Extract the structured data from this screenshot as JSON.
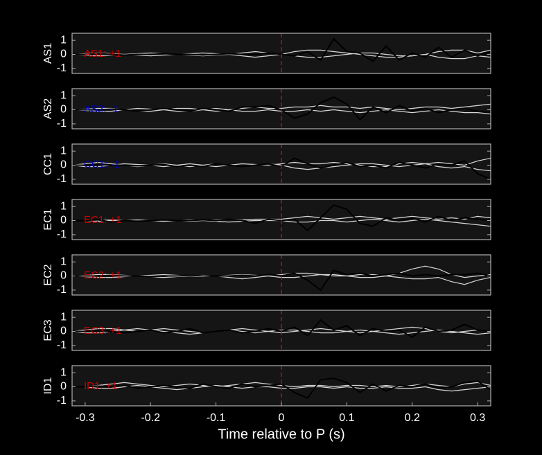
{
  "chart_data": [
    {
      "type": "line",
      "ylabel": "AS1",
      "annotation": {
        "text": "AS1: +1",
        "color": "#cc0000"
      },
      "vline": {
        "value": 0,
        "color": "#dd0000"
      },
      "x": [
        -0.32,
        -0.3,
        -0.28,
        -0.26,
        -0.24,
        -0.22,
        -0.2,
        -0.18,
        -0.16,
        -0.14,
        -0.12,
        -0.1,
        -0.08,
        -0.06,
        -0.04,
        -0.02,
        0,
        0.02,
        0.04,
        0.06,
        0.08,
        0.1,
        0.12,
        0.14,
        0.16,
        0.18,
        0.2,
        0.22,
        0.24,
        0.26,
        0.28,
        0.3,
        0.32
      ],
      "xlim": [
        -0.32,
        0.32
      ],
      "ylim": [
        -1.35,
        1.5
      ],
      "yticks": [
        -1,
        0,
        1
      ],
      "series": [
        {
          "color": "#d8d8d8",
          "values": [
            0,
            0.05,
            0.1,
            0.05,
            0,
            -0.05,
            -0.1,
            -0.05,
            0,
            0.05,
            0.1,
            0.05,
            0,
            -0.1,
            -0.2,
            -0.1,
            0,
            0.2,
            0.3,
            0.3,
            0.2,
            0.1,
            0,
            -0.1,
            -0.2,
            -0.2,
            -0.1,
            0,
            0.2,
            0.3,
            0.3,
            0.1,
            0.3
          ]
        },
        {
          "color": "#d8d8d8",
          "values": [
            0,
            -0.05,
            -0.1,
            -0.05,
            0,
            0.05,
            0.1,
            0.05,
            0,
            -0.05,
            -0.1,
            -0.05,
            0,
            0.1,
            0.2,
            0.1,
            0,
            -0.1,
            -0.2,
            -0.2,
            -0.1,
            0,
            0.1,
            0.1,
            0,
            -0.1,
            -0.1,
            0,
            -0.2,
            -0.3,
            -0.3,
            -0.1,
            -0.2
          ]
        },
        {
          "color": "#000000",
          "values": [
            0,
            0,
            0.05,
            0,
            -0.05,
            0,
            0,
            0.05,
            0,
            0,
            -0.05,
            0,
            0.05,
            0,
            0,
            0.1,
            0,
            -0.1,
            0.2,
            -0.4,
            1.1,
            0.2,
            0.1,
            -0.5,
            0.6,
            -0.4,
            0.1,
            -0.2,
            0.5,
            -0.2,
            0.3,
            -0.1,
            0.2
          ]
        }
      ]
    },
    {
      "type": "line",
      "ylabel": "AS2",
      "annotation": {
        "text": "AS2: -1",
        "color": "#0000bb"
      },
      "vline": {
        "value": 0,
        "color": "#dd0000"
      },
      "x": [
        -0.32,
        -0.3,
        -0.28,
        -0.26,
        -0.24,
        -0.22,
        -0.2,
        -0.18,
        -0.16,
        -0.14,
        -0.12,
        -0.1,
        -0.08,
        -0.06,
        -0.04,
        -0.02,
        0,
        0.02,
        0.04,
        0.06,
        0.08,
        0.1,
        0.12,
        0.14,
        0.16,
        0.18,
        0.2,
        0.22,
        0.24,
        0.26,
        0.28,
        0.3,
        0.32
      ],
      "xlim": [
        -0.32,
        0.32
      ],
      "ylim": [
        -1.35,
        1.5
      ],
      "yticks": [
        -1,
        0,
        1
      ],
      "series": [
        {
          "color": "#d8d8d8",
          "values": [
            0,
            0.05,
            0.1,
            0.1,
            0,
            -0.1,
            -0.1,
            0,
            0.1,
            0.1,
            0,
            -0.1,
            0,
            0.1,
            0.2,
            0.1,
            0.1,
            0.2,
            0.2,
            0.3,
            0.2,
            0.2,
            0.1,
            0.2,
            0.1,
            0,
            0.1,
            0.2,
            0.2,
            0.1,
            0.2,
            0.3,
            0.4
          ]
        },
        {
          "color": "#d8d8d8",
          "values": [
            0,
            -0.05,
            -0.1,
            -0.1,
            0,
            0.1,
            0.05,
            0,
            -0.1,
            -0.1,
            0,
            0.1,
            0,
            -0.1,
            -0.1,
            0,
            -0.1,
            -0.1,
            0,
            -0.1,
            0,
            -0.1,
            -0.2,
            -0.1,
            0,
            -0.1,
            -0.2,
            -0.1,
            0,
            -0.1,
            -0.2,
            -0.2,
            -0.3
          ]
        },
        {
          "color": "#000000",
          "values": [
            0,
            0,
            0,
            0.05,
            0,
            -0.1,
            0,
            0.1,
            0,
            -0.1,
            0.1,
            0,
            -0.1,
            0.2,
            0.2,
            0.3,
            0,
            -0.6,
            -0.3,
            0.5,
            0.9,
            0.4,
            -0.7,
            0.2,
            -0.2,
            0.3,
            -0.1,
            0.1,
            -0.2,
            0,
            0.1,
            -0.1,
            -0.2
          ]
        }
      ]
    },
    {
      "type": "line",
      "ylabel": "CC1",
      "annotation": {
        "text": "CC1: -1",
        "color": "#0000bb"
      },
      "vline": {
        "value": 0,
        "color": "#dd0000"
      },
      "x": [
        -0.32,
        -0.3,
        -0.28,
        -0.26,
        -0.24,
        -0.22,
        -0.2,
        -0.18,
        -0.16,
        -0.14,
        -0.12,
        -0.1,
        -0.08,
        -0.06,
        -0.04,
        -0.02,
        0,
        0.02,
        0.04,
        0.06,
        0.08,
        0.1,
        0.12,
        0.14,
        0.16,
        0.18,
        0.2,
        0.22,
        0.24,
        0.26,
        0.28,
        0.3,
        0.32
      ],
      "xlim": [
        -0.32,
        0.32
      ],
      "ylim": [
        -1.35,
        1.5
      ],
      "yticks": [
        -1,
        0,
        1
      ],
      "series": [
        {
          "color": "#d8d8d8",
          "values": [
            0,
            0.1,
            0.2,
            0.1,
            0,
            -0.1,
            0,
            0.1,
            0,
            -0.1,
            0,
            0.1,
            0,
            -0.1,
            0,
            0.1,
            0,
            -0.2,
            -0.3,
            -0.2,
            -0.1,
            0,
            0.1,
            0.1,
            0,
            -0.1,
            0,
            0.1,
            0.2,
            0.1,
            0,
            0.3,
            0.5
          ]
        },
        {
          "color": "#d8d8d8",
          "values": [
            0,
            -0.1,
            -0.1,
            0,
            0.1,
            0.05,
            0,
            -0.1,
            0,
            0.1,
            0,
            -0.1,
            0,
            0.1,
            0.05,
            0,
            0.1,
            0.2,
            0.1,
            0.1,
            0.2,
            0.1,
            0,
            -0.1,
            -0.1,
            0.1,
            0.2,
            0.1,
            -0.1,
            -0.2,
            -0.1,
            -0.3,
            -0.4
          ]
        },
        {
          "color": "#000000",
          "values": [
            0,
            0,
            0.05,
            0,
            0,
            -0.05,
            0,
            0.05,
            -0.1,
            0,
            -0.1,
            0.1,
            0,
            -0.1,
            0,
            0.1,
            -0.1,
            0.5,
            0.1,
            -0.2,
            0,
            0.2,
            -0.1,
            0,
            -0.2,
            0.2,
            0,
            -0.2,
            0.1,
            0,
            0.3,
            -0.6,
            -1.0
          ]
        }
      ]
    },
    {
      "type": "line",
      "ylabel": "EC1",
      "annotation": {
        "text": "EC1: +1",
        "color": "#cc0000"
      },
      "vline": {
        "value": 0,
        "color": "#dd0000"
      },
      "x": [
        -0.32,
        -0.3,
        -0.28,
        -0.26,
        -0.24,
        -0.22,
        -0.2,
        -0.18,
        -0.16,
        -0.14,
        -0.12,
        -0.1,
        -0.08,
        -0.06,
        -0.04,
        -0.02,
        0,
        0.02,
        0.04,
        0.06,
        0.08,
        0.1,
        0.12,
        0.14,
        0.16,
        0.18,
        0.2,
        0.22,
        0.24,
        0.26,
        0.28,
        0.3,
        0.32
      ],
      "xlim": [
        -0.32,
        0.32
      ],
      "ylim": [
        -1.35,
        1.5
      ],
      "yticks": [
        -1,
        0,
        1
      ],
      "series": [
        {
          "color": "#d8d8d8",
          "values": [
            0,
            0,
            0,
            0.05,
            0,
            -0.05,
            0,
            0.05,
            0,
            -0.05,
            0,
            0.05,
            0.1,
            0.05,
            0.1,
            0.1,
            0.1,
            0.2,
            0.3,
            0.2,
            0.1,
            0.2,
            0.3,
            0.2,
            0.1,
            0.2,
            0.3,
            0.2,
            0.1,
            0.2,
            0.1,
            0.3,
            0.2
          ]
        },
        {
          "color": "#d8d8d8",
          "values": [
            0,
            0,
            -0.05,
            0,
            0,
            0.05,
            0,
            -0.05,
            0,
            0.05,
            0,
            -0.05,
            -0.1,
            -0.05,
            0,
            0,
            0,
            -0.1,
            -0.1,
            0,
            0,
            -0.1,
            0,
            0.1,
            0,
            -0.1,
            0,
            0.1,
            0,
            -0.1,
            -0.2,
            -0.3,
            -0.4
          ]
        },
        {
          "color": "#000000",
          "values": [
            0,
            0,
            0.05,
            -0.1,
            0,
            -0.05,
            0,
            0.05,
            0,
            0,
            0.05,
            0,
            0.1,
            0,
            -0.2,
            0.1,
            0,
            0.1,
            -0.7,
            0.2,
            1.1,
            0.8,
            -0.2,
            -0.4,
            0.2,
            0,
            0.2,
            -0.1,
            0.3,
            0,
            0.2,
            0.1,
            0
          ]
        }
      ]
    },
    {
      "type": "line",
      "ylabel": "EC2",
      "annotation": {
        "text": "EC2: +1",
        "color": "#cc0000"
      },
      "vline": {
        "value": 0,
        "color": "#dd0000"
      },
      "x": [
        -0.32,
        -0.3,
        -0.28,
        -0.26,
        -0.24,
        -0.22,
        -0.2,
        -0.18,
        -0.16,
        -0.14,
        -0.12,
        -0.1,
        -0.08,
        -0.06,
        -0.04,
        -0.02,
        0,
        0.02,
        0.04,
        0.06,
        0.08,
        0.1,
        0.12,
        0.14,
        0.16,
        0.18,
        0.2,
        0.22,
        0.24,
        0.26,
        0.28,
        0.3,
        0.32
      ],
      "xlim": [
        -0.32,
        0.32
      ],
      "ylim": [
        -1.35,
        1.5
      ],
      "yticks": [
        -1,
        0,
        1
      ],
      "series": [
        {
          "color": "#d8d8d8",
          "values": [
            0,
            0.05,
            0.1,
            0.1,
            0.05,
            0,
            -0.05,
            -0.1,
            -0.05,
            0,
            0.05,
            0,
            -0.1,
            -0.2,
            -0.1,
            0,
            0.1,
            0.2,
            0.2,
            0.1,
            0,
            0,
            0.1,
            0.1,
            0,
            0.2,
            0.5,
            0.7,
            0.5,
            0.1,
            -0.1,
            0,
            0.1
          ]
        },
        {
          "color": "#d8d8d8",
          "values": [
            0,
            -0.05,
            -0.1,
            -0.1,
            -0.05,
            0,
            0.05,
            0.1,
            0.05,
            0,
            -0.05,
            0,
            0.05,
            0.1,
            0.05,
            0,
            -0.1,
            -0.1,
            0,
            0.1,
            0.1,
            0,
            -0.1,
            -0.1,
            0,
            -0.1,
            -0.2,
            -0.2,
            -0.1,
            -0.4,
            -0.6,
            -0.3,
            -0.1
          ]
        },
        {
          "color": "#000000",
          "values": [
            0,
            0,
            0,
            0.05,
            0,
            0,
            -0.05,
            0,
            0,
            0.05,
            0,
            0,
            0,
            0.05,
            0,
            0.1,
            0,
            0.2,
            -0.3,
            -1.0,
            0.4,
            0.1,
            0.2,
            0,
            0.1,
            0.2,
            0,
            0.1,
            0,
            0.1,
            0.1,
            0.2,
            0
          ]
        }
      ]
    },
    {
      "type": "line",
      "ylabel": "EC3",
      "annotation": {
        "text": "EC3: +1",
        "color": "#cc0000"
      },
      "vline": {
        "value": 0,
        "color": "#dd0000"
      },
      "x": [
        -0.32,
        -0.3,
        -0.28,
        -0.26,
        -0.24,
        -0.22,
        -0.2,
        -0.18,
        -0.16,
        -0.14,
        -0.12,
        -0.1,
        -0.08,
        -0.06,
        -0.04,
        -0.02,
        0,
        0.02,
        0.04,
        0.06,
        0.08,
        0.1,
        0.12,
        0.14,
        0.16,
        0.18,
        0.2,
        0.22,
        0.24,
        0.26,
        0.28,
        0.3,
        0.32
      ],
      "xlim": [
        -0.32,
        0.32
      ],
      "ylim": [
        -1.35,
        1.5
      ],
      "yticks": [
        -1,
        0,
        1
      ],
      "series": [
        {
          "color": "#d8d8d8",
          "values": [
            0,
            0.1,
            0.2,
            0.2,
            0.1,
            0,
            0.1,
            0.2,
            0.1,
            0,
            -0.1,
            0,
            0.1,
            0.2,
            0.1,
            0,
            -0.1,
            0,
            0.1,
            0.2,
            0.1,
            0,
            -0.1,
            0,
            0.1,
            0.2,
            0.3,
            0.2,
            0,
            -0.1,
            0,
            0.1,
            0
          ]
        },
        {
          "color": "#d8d8d8",
          "values": [
            0,
            -0.1,
            -0.1,
            0,
            0.1,
            0.2,
            0.1,
            0,
            -0.1,
            -0.2,
            -0.1,
            0,
            0.1,
            0,
            -0.1,
            0,
            0.1,
            0.1,
            0,
            -0.1,
            -0.1,
            0,
            0.1,
            0,
            -0.1,
            -0.2,
            -0.1,
            0,
            0.1,
            0,
            -0.1,
            -0.2,
            -0.1
          ]
        },
        {
          "color": "#000000",
          "values": [
            0,
            0,
            0.05,
            0,
            -0.1,
            0,
            0.1,
            -0.1,
            0,
            0.2,
            -0.1,
            0,
            0.1,
            -0.1,
            0,
            0.2,
            0,
            0.3,
            -0.3,
            0.8,
            0.1,
            0.4,
            -0.3,
            0.2,
            0,
            0.1,
            -0.4,
            0.3,
            0,
            0.1,
            0.5,
            0.1,
            0
          ]
        }
      ]
    },
    {
      "type": "line",
      "ylabel": "ID1",
      "annotation": {
        "text": "ID1: +1",
        "color": "#cc0000"
      },
      "vline": {
        "value": 0,
        "color": "#dd0000"
      },
      "x": [
        -0.32,
        -0.3,
        -0.28,
        -0.26,
        -0.24,
        -0.22,
        -0.2,
        -0.18,
        -0.16,
        -0.14,
        -0.12,
        -0.1,
        -0.08,
        -0.06,
        -0.04,
        -0.02,
        0,
        0.02,
        0.04,
        0.06,
        0.08,
        0.1,
        0.12,
        0.14,
        0.16,
        0.18,
        0.2,
        0.22,
        0.24,
        0.26,
        0.28,
        0.3,
        0.32
      ],
      "xlim": [
        -0.32,
        0.32
      ],
      "ylim": [
        -1.35,
        1.5
      ],
      "yticks": [
        -1,
        0,
        1
      ],
      "xticks": [
        -0.3,
        -0.2,
        -0.1,
        0,
        0.1,
        0.2,
        0.3
      ],
      "xlabel": "Time relative to P (s)",
      "series": [
        {
          "color": "#d8d8d8",
          "values": [
            0,
            0,
            0.1,
            0.2,
            0.3,
            0.2,
            0.1,
            0,
            0.1,
            0.2,
            0.1,
            0,
            0.1,
            0.2,
            0.3,
            0.2,
            0.1,
            0,
            0.1,
            0.1,
            0,
            0.1,
            0.1,
            0,
            0.1,
            0,
            0.1,
            0.2,
            0.1,
            0,
            0.2,
            0.3,
            0.1
          ]
        },
        {
          "color": "#d8d8d8",
          "values": [
            0,
            0,
            -0.1,
            -0.1,
            0,
            0.1,
            0,
            -0.1,
            -0.2,
            -0.1,
            0,
            0.1,
            0,
            -0.1,
            0,
            0,
            -0.1,
            -0.1,
            0,
            0,
            -0.1,
            0,
            -0.1,
            -0.1,
            0,
            -0.1,
            -0.1,
            0,
            -0.2,
            -0.3,
            -0.2,
            -0.1,
            0
          ]
        },
        {
          "color": "#000000",
          "values": [
            0,
            0,
            0.05,
            0,
            0.1,
            -0.1,
            0,
            0.1,
            0,
            -0.1,
            0.2,
            0,
            -0.1,
            0.2,
            0,
            0.1,
            0.2,
            -0.4,
            -0.8,
            0.5,
            0.6,
            0.3,
            -0.4,
            0.2,
            -0.3,
            0.1,
            0,
            0.2,
            -0.1,
            0,
            0.3,
            0.4,
            -0.2
          ]
        }
      ]
    }
  ]
}
